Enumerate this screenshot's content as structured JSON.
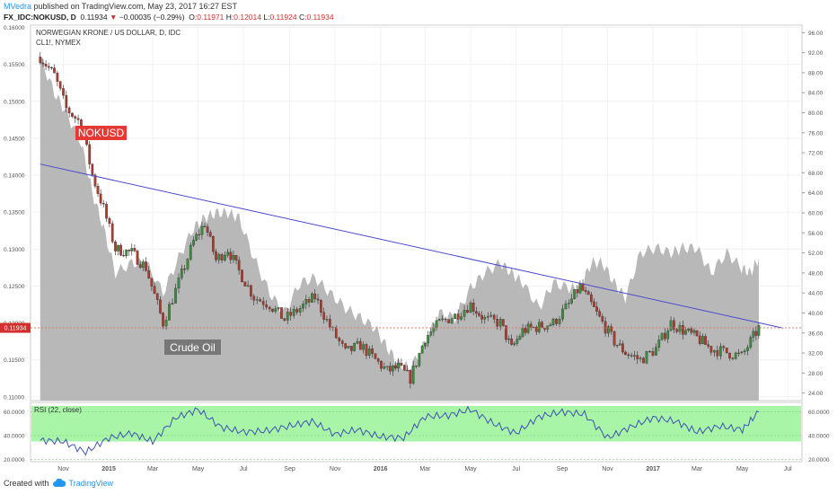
{
  "header": {
    "author": "MVedra",
    "published_text": "published on TradingView.com, May 23, 2017 16:27 EST",
    "symbol": "FX_IDC:NOKUSD, D",
    "last": "0.11934",
    "change_arrow": "▼",
    "change": "−0.00035 (−0.29%)",
    "open_label": "O:",
    "open": "0.11971",
    "high_label": "H:",
    "high": "0.12014",
    "low_label": "L:",
    "low": "0.11924",
    "close_label": "C:",
    "close": "0.11934"
  },
  "legend": {
    "title": "NORWEGIAN KRONE / US DOLLAR, D, IDC",
    "overlay": "CL1!, NYMEX"
  },
  "annotations": {
    "nokusd": "NOKUSD",
    "crude": "Crude Oil",
    "price_tag": "0.11934"
  },
  "rsi_label": "RSI (22, close)",
  "footer": {
    "created_with": "Created with",
    "brand": "TradingView"
  },
  "colors": {
    "candle_up": "#3d8b3d",
    "candle_down": "#b03a2e",
    "oil_area": "#b8b8b8",
    "trendline": "#4a4ad0",
    "price_line": "#e57373",
    "rsi_band": "#a8f5a8",
    "rsi_line": "#3f51b5",
    "nokusd_label_bg": "#e53935",
    "crude_label_bg": "#777777"
  },
  "chart_data": [
    {
      "type": "line",
      "title": "NORWEGIAN KRONE / US DOLLAR, D, IDC",
      "notes": "Daily candles NOKUSD with CL1! (NYMEX crude oil) overlay as grey area on right scale; downward trendline drawn from ~Oct 2014 to Jun 2017",
      "x_ticks": [
        "Nov",
        "2015",
        "Mar",
        "May",
        "Jul",
        "Sep",
        "Nov",
        "2016",
        "Mar",
        "May",
        "Jul",
        "Sep",
        "Nov",
        "2017",
        "Mar",
        "May",
        "Jul"
      ],
      "left_ticks": [
        "0.16000",
        "0.15500",
        "0.15000",
        "0.14500",
        "0.14000",
        "0.13500",
        "0.13000",
        "0.12500",
        "0.12000",
        "0.11500",
        "0.11000"
      ],
      "right_ticks": [
        "96.00",
        "92.00",
        "88.00",
        "84.00",
        "80.00",
        "76.00",
        "72.00",
        "68.00",
        "64.00",
        "60.00",
        "56.00",
        "52.00",
        "48.00",
        "44.00",
        "40.00",
        "36.00",
        "32.00",
        "28.00",
        "24.00"
      ],
      "ylim_left": [
        0.1095,
        0.1603
      ],
      "ylim_right": [
        22.5,
        97.5
      ],
      "series": [
        {
          "name": "NOKUSD",
          "x": [
            "2014-10-01",
            "2014-10-20",
            "2014-11-05",
            "2014-11-25",
            "2014-12-10",
            "2014-12-25",
            "2015-01-10",
            "2015-02-01",
            "2015-02-20",
            "2015-03-15",
            "2015-04-05",
            "2015-04-25",
            "2015-05-10",
            "2015-05-25",
            "2015-06-10",
            "2015-06-25",
            "2015-07-15",
            "2015-08-05",
            "2015-08-25",
            "2015-09-15",
            "2015-10-05",
            "2015-10-25",
            "2015-11-15",
            "2015-12-05",
            "2015-12-25",
            "2016-01-10",
            "2016-01-25",
            "2016-02-10",
            "2016-03-01",
            "2016-03-20",
            "2016-04-10",
            "2016-05-01",
            "2016-05-20",
            "2016-06-10",
            "2016-06-25",
            "2016-07-10",
            "2016-08-01",
            "2016-08-20",
            "2016-09-10",
            "2016-09-25",
            "2016-10-10",
            "2016-10-25",
            "2016-11-10",
            "2016-11-25",
            "2016-12-15",
            "2017-01-05",
            "2017-01-25",
            "2017-02-10",
            "2017-03-01",
            "2017-03-20",
            "2017-04-10",
            "2017-04-30",
            "2017-05-12",
            "2017-05-23"
          ],
          "values": [
            0.156,
            0.1535,
            0.149,
            0.147,
            0.14,
            0.1355,
            0.13,
            0.1295,
            0.1275,
            0.12,
            0.1255,
            0.131,
            0.1335,
            0.1285,
            0.13,
            0.127,
            0.1235,
            0.1225,
            0.1205,
            0.122,
            0.1235,
            0.1195,
            0.116,
            0.117,
            0.115,
            0.1135,
            0.114,
            0.1125,
            0.118,
            0.12,
            0.121,
            0.1225,
            0.1205,
            0.12,
            0.1165,
            0.119,
            0.1195,
            0.12,
            0.1225,
            0.125,
            0.1225,
            0.12,
            0.1175,
            0.116,
            0.115,
            0.1165,
            0.12,
            0.119,
            0.118,
            0.1165,
            0.116,
            0.1155,
            0.1175,
            0.11934
          ]
        },
        {
          "name": "CL1!, NYMEX",
          "x": [
            "2014-10-01",
            "2014-10-20",
            "2014-11-05",
            "2014-11-25",
            "2014-12-10",
            "2014-12-25",
            "2015-01-10",
            "2015-02-01",
            "2015-02-20",
            "2015-03-15",
            "2015-04-05",
            "2015-04-25",
            "2015-05-10",
            "2015-05-25",
            "2015-06-10",
            "2015-06-25",
            "2015-07-15",
            "2015-08-05",
            "2015-08-25",
            "2015-09-15",
            "2015-10-05",
            "2015-10-25",
            "2015-11-15",
            "2015-12-05",
            "2015-12-25",
            "2016-01-10",
            "2016-01-25",
            "2016-02-10",
            "2016-03-01",
            "2016-03-20",
            "2016-04-10",
            "2016-05-01",
            "2016-05-20",
            "2016-06-10",
            "2016-06-25",
            "2016-07-10",
            "2016-08-01",
            "2016-08-20",
            "2016-09-10",
            "2016-09-25",
            "2016-10-10",
            "2016-10-25",
            "2016-11-10",
            "2016-11-25",
            "2016-12-15",
            "2017-01-05",
            "2017-01-25",
            "2017-02-10",
            "2017-03-01",
            "2017-03-20",
            "2017-04-10",
            "2017-04-30",
            "2017-05-12",
            "2017-05-23"
          ],
          "values": [
            91,
            84,
            80,
            74,
            64,
            57,
            48,
            50,
            50,
            44,
            51,
            57,
            59,
            60,
            60,
            59,
            51,
            44,
            40,
            46,
            47,
            44,
            41,
            39,
            37,
            33,
            30,
            29,
            34,
            40,
            39,
            45,
            48,
            50,
            48,
            46,
            41,
            46,
            45,
            45,
            50,
            50,
            46,
            43,
            52,
            53,
            52,
            53,
            53,
            48,
            52,
            49,
            48,
            51
          ]
        }
      ],
      "trendline": {
        "x": [
          "2014-10-01",
          "2017-06-25"
        ],
        "y": [
          0.1415,
          0.1193
        ]
      }
    },
    {
      "type": "line",
      "title": "RSI (22, close)",
      "y_ticks": [
        "60.0000",
        "40.0000",
        "20.0000"
      ],
      "ylim": [
        18,
        68
      ],
      "band": [
        35,
        65
      ],
      "series": [
        {
          "name": "RSI",
          "x": [
            "2014-10-01",
            "2014-11-01",
            "2014-12-01",
            "2015-01-01",
            "2015-02-01",
            "2015-03-01",
            "2015-04-01",
            "2015-05-01",
            "2015-06-01",
            "2015-07-01",
            "2015-08-01",
            "2015-09-01",
            "2015-10-01",
            "2015-11-01",
            "2015-12-01",
            "2016-01-01",
            "2016-02-01",
            "2016-03-01",
            "2016-04-01",
            "2016-05-01",
            "2016-06-01",
            "2016-07-01",
            "2016-08-01",
            "2016-09-01",
            "2016-10-01",
            "2016-11-01",
            "2016-12-01",
            "2017-01-01",
            "2017-02-01",
            "2017-03-01",
            "2017-04-01",
            "2017-05-01",
            "2017-05-23"
          ],
          "values": [
            36,
            35,
            26,
            38,
            42,
            35,
            55,
            62,
            47,
            43,
            44,
            48,
            52,
            41,
            45,
            39,
            38,
            56,
            57,
            62,
            50,
            42,
            56,
            60,
            58,
            38,
            47,
            55,
            52,
            43,
            48,
            45,
            60
          ]
        }
      ]
    }
  ]
}
